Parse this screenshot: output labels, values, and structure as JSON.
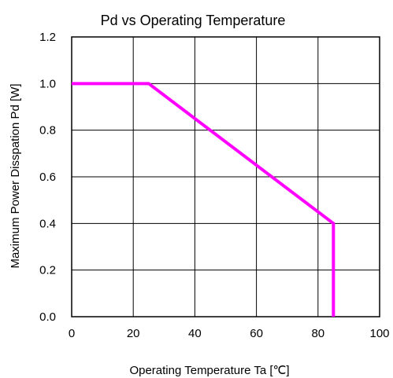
{
  "chart_data": {
    "type": "line",
    "title": "Pd vs Operating Temperature",
    "xlabel": "Operating Temperature   Ta [℃]",
    "ylabel": "Maximum Power Disspation Pd [W]",
    "xlim": [
      0,
      100
    ],
    "ylim": [
      0,
      1.2
    ],
    "x_ticks": [
      "0",
      "20",
      "40",
      "60",
      "80",
      "100"
    ],
    "y_ticks": [
      "0.0",
      "0.2",
      "0.4",
      "0.6",
      "0.8",
      "1.0",
      "1.2"
    ],
    "grid": true,
    "series": [
      {
        "x": [
          0,
          25,
          85,
          85
        ],
        "y": [
          1.0,
          1.0,
          0.4,
          0.0
        ],
        "color": "#ff00ff"
      }
    ]
  }
}
